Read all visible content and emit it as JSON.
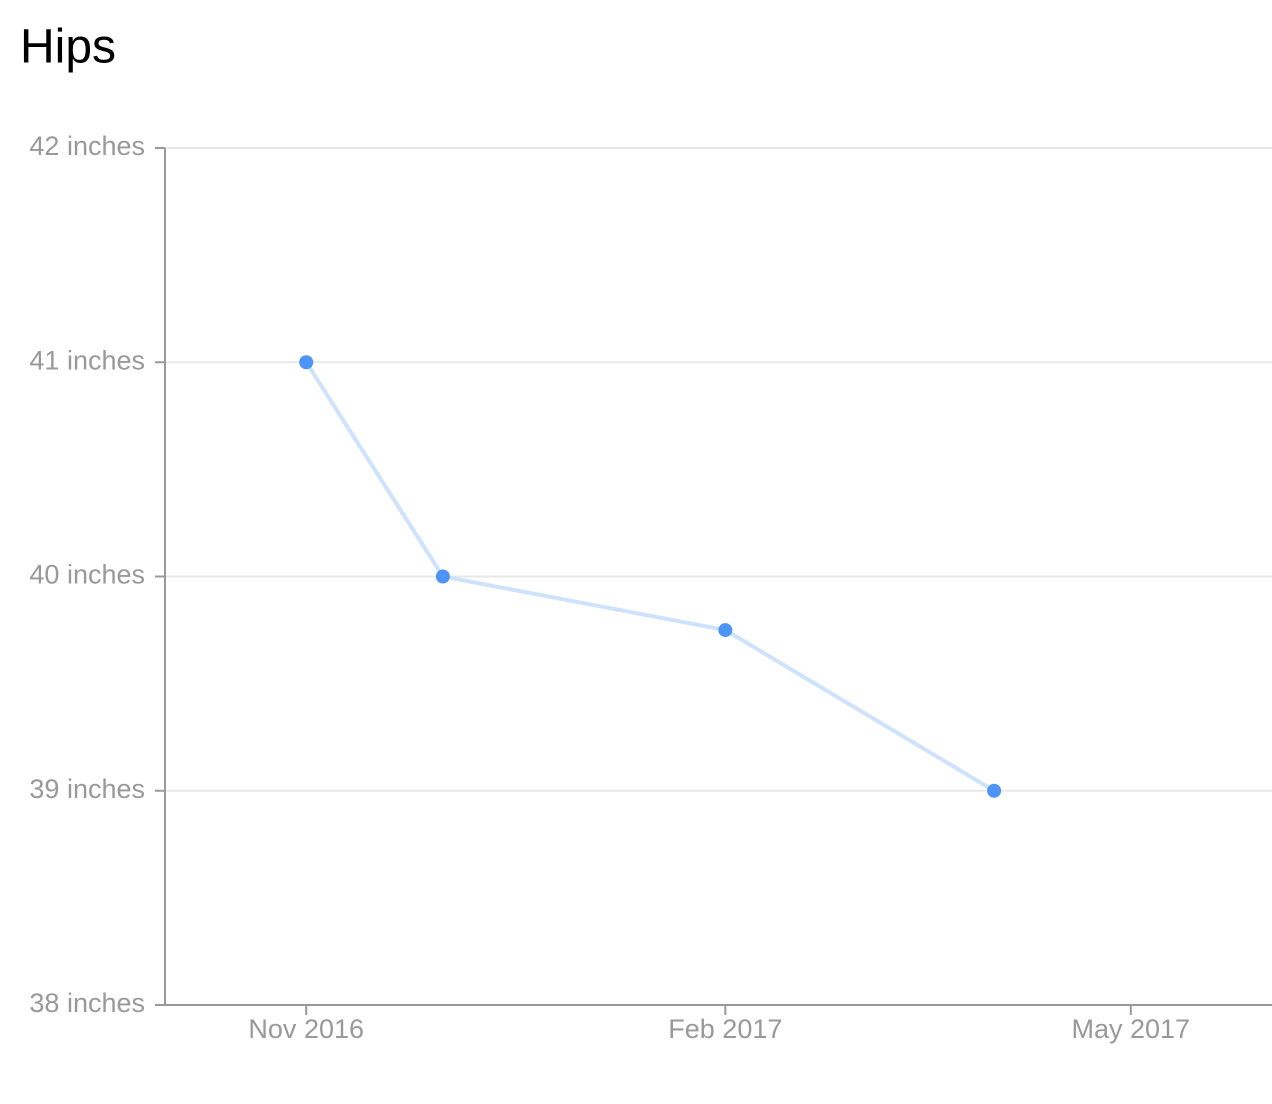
{
  "chart_data": {
    "type": "line",
    "title": "Hips",
    "x": [
      "2016-11",
      "2016-12",
      "2017-02",
      "2017-04"
    ],
    "series": [
      {
        "name": "Hips",
        "color": "#4d94f7",
        "line_color": "#cfe2fb",
        "values": [
          41,
          40,
          39.75,
          39
        ]
      }
    ],
    "xlim": [
      "2016-10",
      "2017-06"
    ],
    "xticks": [
      {
        "value": "2016-11",
        "label": "Nov 2016"
      },
      {
        "value": "2017-02",
        "label": "Feb 2017"
      },
      {
        "value": "2017-05",
        "label": "May 2017"
      }
    ],
    "ylim": [
      38,
      42
    ],
    "yticks": [
      {
        "value": 38,
        "label": "38 inches"
      },
      {
        "value": 39,
        "label": "39 inches"
      },
      {
        "value": 40,
        "label": "40 inches"
      },
      {
        "value": 41,
        "label": "41 inches"
      },
      {
        "value": 42,
        "label": "42 inches"
      }
    ],
    "grid": true
  }
}
